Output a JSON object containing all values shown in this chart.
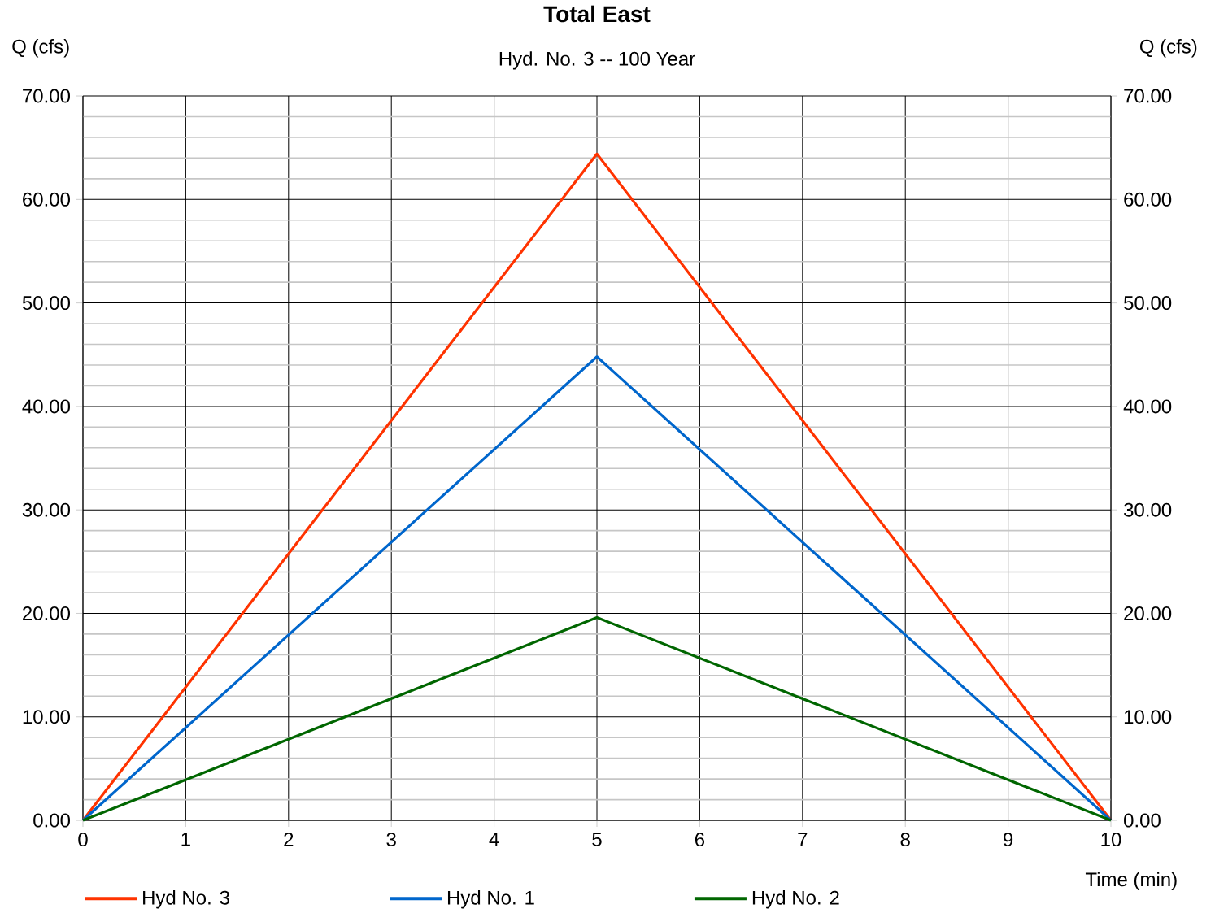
{
  "chart_data": {
    "type": "line",
    "title": "Total East",
    "subtitle": "Hyd. No. 3 -- 100 Year",
    "xlabel": "Time (min)",
    "ylabel": "Q (cfs)",
    "y2label": "Q (cfs)",
    "x": [
      0,
      5,
      10
    ],
    "series": [
      {
        "name": "Hyd No. 3",
        "color": "#ff3300",
        "values": [
          0,
          64.4,
          0
        ]
      },
      {
        "name": "Hyd No. 1",
        "color": "#0066cc",
        "values": [
          0,
          44.8,
          0
        ]
      },
      {
        "name": "Hyd No. 2",
        "color": "#006600",
        "values": [
          0,
          19.6,
          0
        ]
      }
    ],
    "xlim": [
      0,
      10
    ],
    "xticks": [
      0,
      1,
      2,
      3,
      4,
      5,
      6,
      7,
      8,
      9,
      10
    ],
    "ylim": [
      0,
      70
    ],
    "yticks": [
      {
        "value": 0,
        "label": "0.00"
      },
      {
        "value": 10,
        "label": "10.00"
      },
      {
        "value": 20,
        "label": "20.00"
      },
      {
        "value": 30,
        "label": "30.00"
      },
      {
        "value": 40,
        "label": "40.00"
      },
      {
        "value": 50,
        "label": "50.00"
      },
      {
        "value": 60,
        "label": "60.00"
      },
      {
        "value": 70,
        "label": "70.00"
      }
    ],
    "y2lim": [
      0,
      70
    ],
    "y2ticks": [
      {
        "value": 0,
        "label": "0.00"
      },
      {
        "value": 10,
        "label": "10.00"
      },
      {
        "value": 20,
        "label": "20.00"
      },
      {
        "value": 30,
        "label": "30.00"
      },
      {
        "value": 40,
        "label": "40.00"
      },
      {
        "value": 50,
        "label": "50.00"
      },
      {
        "value": 60,
        "label": "60.00"
      },
      {
        "value": 70,
        "label": "70.00"
      }
    ],
    "grid": true,
    "legend": "bottom",
    "marker": "none",
    "line_style": "solid"
  }
}
